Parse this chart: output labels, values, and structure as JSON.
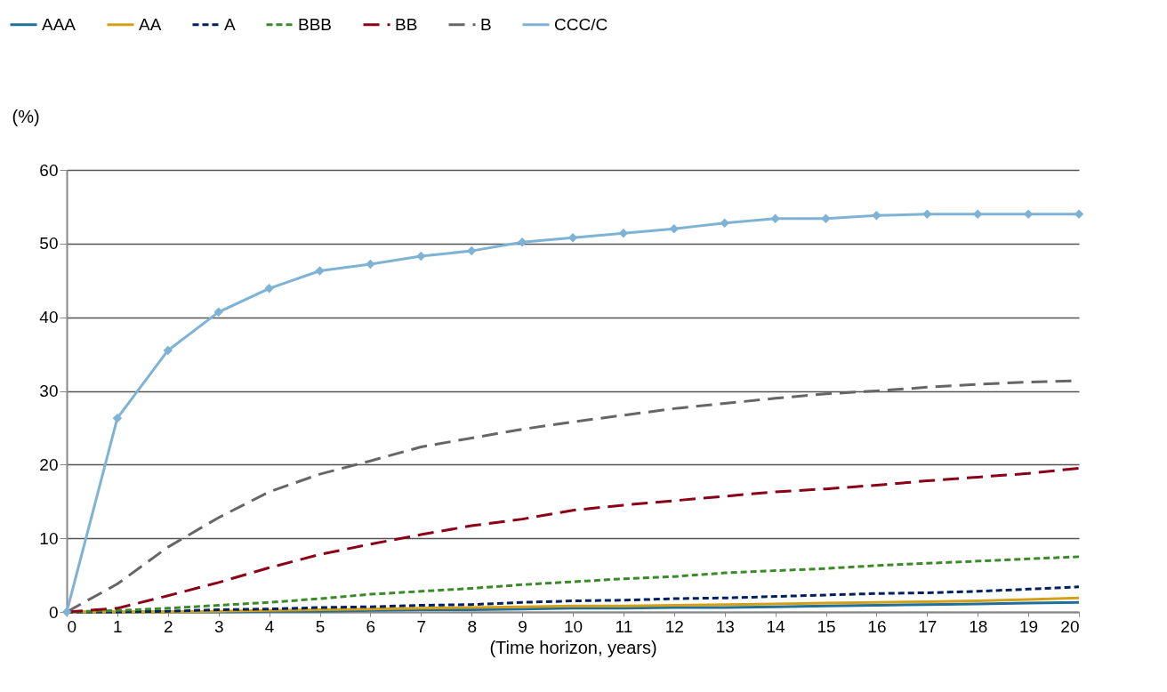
{
  "chart_data": {
    "type": "line",
    "ylabel": "(%)",
    "xlabel": "(Time horizon, years)",
    "x": [
      0,
      1,
      2,
      3,
      4,
      5,
      6,
      7,
      8,
      9,
      10,
      11,
      12,
      13,
      14,
      15,
      16,
      17,
      18,
      19,
      20
    ],
    "xlim": [
      0,
      20
    ],
    "xticks": [
      0,
      1,
      2,
      3,
      4,
      5,
      6,
      7,
      8,
      9,
      10,
      11,
      12,
      13,
      14,
      15,
      16,
      17,
      18,
      19,
      20
    ],
    "ylim": [
      0,
      60
    ],
    "yticks": [
      0,
      10,
      20,
      30,
      40,
      50,
      60
    ],
    "grid": "y",
    "legend": "top",
    "series": [
      {
        "name": "AAA",
        "color": "#1f6f9a",
        "line_style": "solid",
        "values": [
          0,
          0,
          0,
          0,
          0.1,
          0.1,
          0.2,
          0.3,
          0.3,
          0.4,
          0.5,
          0.5,
          0.6,
          0.6,
          0.7,
          0.8,
          0.9,
          1.0,
          1.1,
          1.2,
          1.3
        ]
      },
      {
        "name": "AA",
        "color": "#d4a017",
        "line_style": "solid",
        "values": [
          0,
          0,
          0,
          0.1,
          0.2,
          0.3,
          0.4,
          0.5,
          0.6,
          0.7,
          0.8,
          0.8,
          0.9,
          1.0,
          1.1,
          1.2,
          1.3,
          1.4,
          1.5,
          1.7,
          1.9
        ]
      },
      {
        "name": "A",
        "color": "#002060",
        "line_style": "dotted",
        "values": [
          0,
          0,
          0.1,
          0.3,
          0.4,
          0.6,
          0.7,
          0.9,
          1.0,
          1.3,
          1.5,
          1.6,
          1.8,
          1.9,
          2.1,
          2.3,
          2.5,
          2.6,
          2.8,
          3.1,
          3.4
        ]
      },
      {
        "name": "BBB",
        "color": "#3a8a2a",
        "line_style": "dotted",
        "values": [
          0,
          0.2,
          0.5,
          0.9,
          1.3,
          1.8,
          2.4,
          2.8,
          3.2,
          3.7,
          4.1,
          4.5,
          4.8,
          5.3,
          5.6,
          5.9,
          6.3,
          6.6,
          6.9,
          7.2,
          7.5
        ]
      },
      {
        "name": "BB",
        "color": "#8b0016",
        "line_style": "dashed",
        "values": [
          0,
          0.5,
          2.2,
          4.0,
          6.0,
          7.8,
          9.2,
          10.5,
          11.7,
          12.6,
          13.8,
          14.5,
          15.1,
          15.7,
          16.3,
          16.7,
          17.2,
          17.8,
          18.3,
          18.8,
          19.5
        ]
      },
      {
        "name": "B",
        "color": "#666666",
        "line_style": "dashed",
        "values": [
          0,
          3.8,
          8.8,
          12.8,
          16.3,
          18.7,
          20.5,
          22.4,
          23.6,
          24.8,
          25.8,
          26.7,
          27.6,
          28.3,
          29.0,
          29.6,
          30.0,
          30.5,
          30.9,
          31.2,
          31.4
        ]
      },
      {
        "name": "CCC/C",
        "color": "#7fb3d5",
        "line_style": "solid",
        "marker": "diamond",
        "values": [
          0,
          26.3,
          35.5,
          40.7,
          43.9,
          46.3,
          47.2,
          48.3,
          49.0,
          50.2,
          50.8,
          51.4,
          52.0,
          52.8,
          53.4,
          53.4,
          53.8,
          54.0,
          54.0,
          54.0,
          54.0
        ]
      }
    ]
  }
}
